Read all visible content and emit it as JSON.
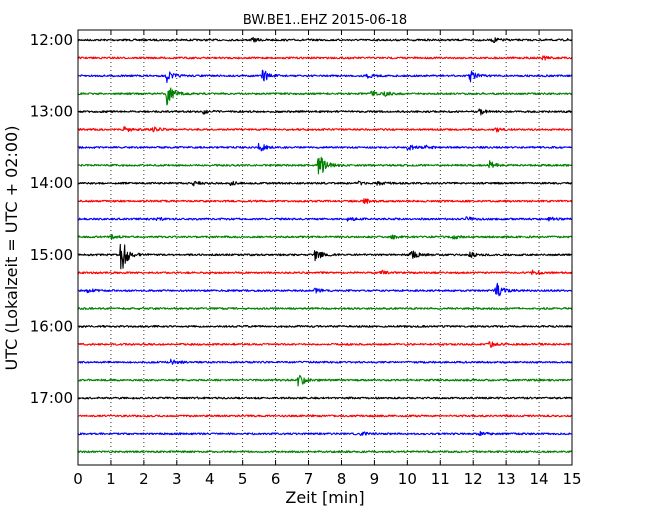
{
  "chart_data": {
    "type": "line",
    "title": "BW.BE1..EHZ 2015-06-18",
    "xlabel": "Zeit  [min]",
    "ylabel": "UTC (Lokalzeit = UTC + 02:00)",
    "xlim": [
      0,
      15
    ],
    "x_ticks": [
      "0",
      "1",
      "2",
      "3",
      "4",
      "5",
      "6",
      "7",
      "8",
      "9",
      "10",
      "11",
      "12",
      "13",
      "14",
      "15"
    ],
    "y_tick_labels": [
      "12:00",
      "13:00",
      "14:00",
      "15:00",
      "16:00",
      "17:00"
    ],
    "grid": "vertical dotted",
    "trace_interval_minutes": 15,
    "trace_colors": [
      "#000000",
      "#ff0000",
      "#0000ff",
      "#008000"
    ],
    "series": [
      {
        "start": "12:00",
        "events": [
          {
            "x": 5.3,
            "amp": 2
          },
          {
            "x": 12.6,
            "amp": 2.5
          },
          {
            "x": 14.9,
            "amp": 2
          }
        ]
      },
      {
        "start": "12:15",
        "events": [
          {
            "x": 14.1,
            "amp": 2.5
          }
        ]
      },
      {
        "start": "12:30",
        "events": [
          {
            "x": 2.7,
            "amp": 6
          },
          {
            "x": 5.6,
            "amp": 7
          },
          {
            "x": 8.8,
            "amp": 2
          },
          {
            "x": 11.9,
            "amp": 6
          }
        ]
      },
      {
        "start": "12:45",
        "events": [
          {
            "x": 2.7,
            "amp": 11
          },
          {
            "x": 8.9,
            "amp": 2
          },
          {
            "x": 9.3,
            "amp": 2
          }
        ]
      },
      {
        "start": "13:00",
        "events": [
          {
            "x": 3.8,
            "amp": 2
          },
          {
            "x": 12.2,
            "amp": 3
          }
        ]
      },
      {
        "start": "13:15",
        "events": [
          {
            "x": 1.4,
            "amp": 3
          },
          {
            "x": 2.3,
            "amp": 2.5
          },
          {
            "x": 12.7,
            "amp": 2
          }
        ]
      },
      {
        "start": "13:30",
        "events": [
          {
            "x": 5.5,
            "amp": 5
          },
          {
            "x": 10.0,
            "amp": 3
          },
          {
            "x": 10.5,
            "amp": 2
          }
        ]
      },
      {
        "start": "13:45",
        "events": [
          {
            "x": 7.3,
            "amp": 14
          },
          {
            "x": 12.5,
            "amp": 4
          }
        ]
      },
      {
        "start": "14:00",
        "events": [
          {
            "x": 3.5,
            "amp": 2
          },
          {
            "x": 4.6,
            "amp": 2
          },
          {
            "x": 8.5,
            "amp": 2
          },
          {
            "x": 9.1,
            "amp": 2
          }
        ]
      },
      {
        "start": "14:15",
        "events": [
          {
            "x": 8.7,
            "amp": 2.5
          }
        ]
      },
      {
        "start": "14:30",
        "events": [
          {
            "x": 2.4,
            "amp": 2
          },
          {
            "x": 8.2,
            "amp": 2
          },
          {
            "x": 11.8,
            "amp": 2
          },
          {
            "x": 14.3,
            "amp": 2
          }
        ]
      },
      {
        "start": "14:45",
        "events": [
          {
            "x": 1.0,
            "amp": 2
          },
          {
            "x": 9.5,
            "amp": 2
          },
          {
            "x": 11.4,
            "amp": 2
          }
        ]
      },
      {
        "start": "15:00",
        "events": [
          {
            "x": 1.3,
            "amp": 22
          },
          {
            "x": 7.2,
            "amp": 6
          },
          {
            "x": 10.1,
            "amp": 5
          },
          {
            "x": 11.9,
            "amp": 3
          }
        ]
      },
      {
        "start": "15:15",
        "events": [
          {
            "x": 9.2,
            "amp": 2
          },
          {
            "x": 13.8,
            "amp": 3
          }
        ]
      },
      {
        "start": "15:30",
        "events": [
          {
            "x": 0.3,
            "amp": 2
          },
          {
            "x": 7.2,
            "amp": 2
          },
          {
            "x": 12.7,
            "amp": 8
          }
        ]
      },
      {
        "start": "15:45",
        "events": []
      },
      {
        "start": "16:00",
        "events": []
      },
      {
        "start": "16:15",
        "events": [
          {
            "x": 12.5,
            "amp": 3
          }
        ]
      },
      {
        "start": "16:30",
        "events": [
          {
            "x": 2.8,
            "amp": 2.5
          }
        ]
      },
      {
        "start": "16:45",
        "events": [
          {
            "x": 6.7,
            "amp": 8
          }
        ]
      },
      {
        "start": "17:00",
        "events": []
      },
      {
        "start": "17:15",
        "events": []
      },
      {
        "start": "17:30",
        "events": [
          {
            "x": 8.6,
            "amp": 2
          },
          {
            "x": 12.2,
            "amp": 2
          }
        ]
      },
      {
        "start": "17:45",
        "events": []
      }
    ]
  }
}
